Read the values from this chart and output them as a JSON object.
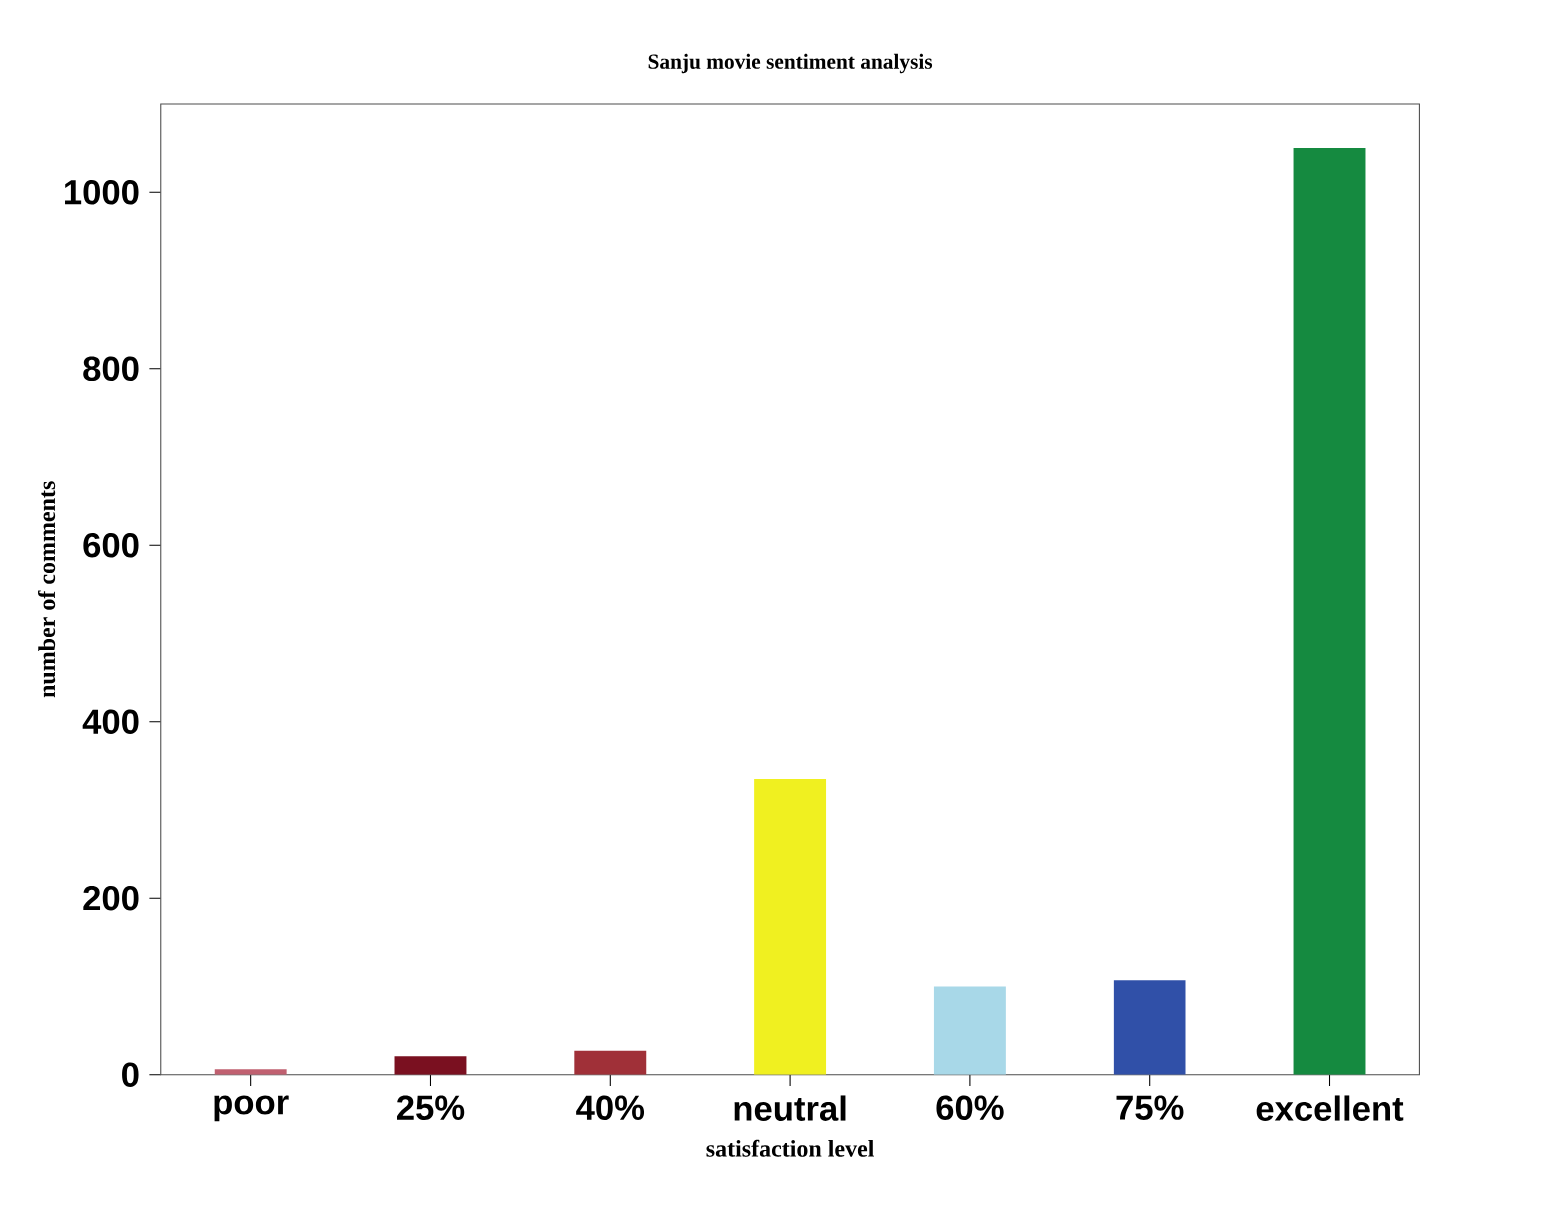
{
  "chart_data": {
    "type": "bar",
    "title": "Sanju movie sentiment analysis",
    "xlabel": "satisfaction level",
    "ylabel": "number of comments",
    "categories": [
      "poor",
      "25%",
      "40%",
      "neutral",
      "60%",
      "75%",
      "excellent"
    ],
    "values": [
      6,
      21,
      27,
      335,
      100,
      107,
      1050
    ],
    "colors": [
      "#c06070",
      "#7a1020",
      "#a03038",
      "#f0f020",
      "#a8d8e8",
      "#3050a8",
      "#158a40"
    ],
    "ylim": [
      0,
      1100
    ],
    "yticks": [
      0,
      200,
      400,
      600,
      800,
      1000
    ],
    "grid": false
  }
}
